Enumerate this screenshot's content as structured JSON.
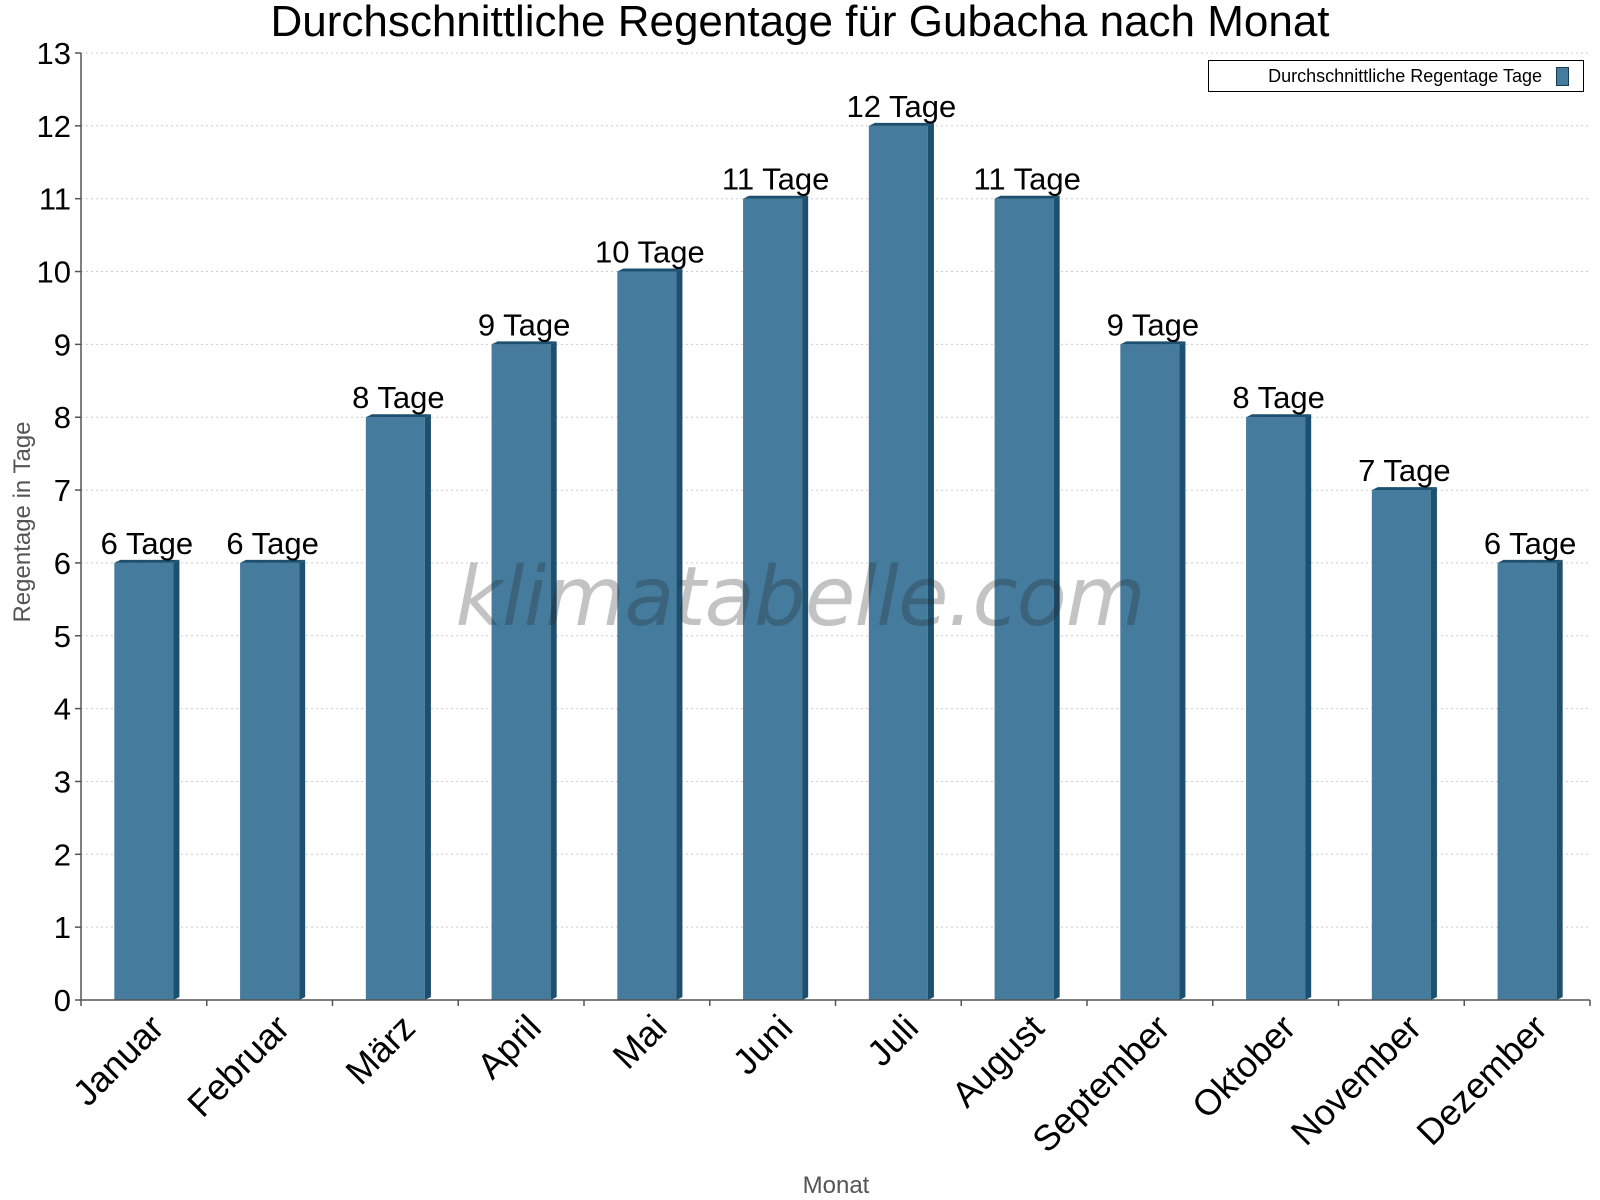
{
  "chart_data": {
    "type": "bar",
    "title": "Durchschnittliche Regentage für Gubacha nach Monat",
    "xlabel": "Monat",
    "ylabel": "Regentage in Tage",
    "ylim": [
      0,
      13
    ],
    "yticks": [
      0,
      1,
      2,
      3,
      4,
      5,
      6,
      7,
      8,
      9,
      10,
      11,
      12,
      13
    ],
    "grid": true,
    "legend_position": "top-right",
    "categories": [
      "Januar",
      "Februar",
      "März",
      "April",
      "Mai",
      "Juni",
      "Juli",
      "August",
      "September",
      "Oktober",
      "November",
      "Dezember"
    ],
    "series": [
      {
        "name": "Durchschnittliche Regentage Tage",
        "values": [
          6,
          6,
          8,
          9,
          10,
          11,
          12,
          11,
          9,
          8,
          7,
          6
        ],
        "labels": [
          "6 Tage",
          "6 Tage",
          "8 Tage",
          "9 Tage",
          "10 Tage",
          "11 Tage",
          "12 Tage",
          "11 Tage",
          "9 Tage",
          "8 Tage",
          "7 Tage",
          "6 Tage"
        ],
        "color": "#457b9d",
        "side_color": "#1d4f6e",
        "top_color": "#1d4f6e"
      }
    ]
  },
  "watermark": "klimatabelle.com",
  "colors": {
    "axis": "#555555",
    "grid": "#cccccc",
    "text": "#000000",
    "axis_title": "#555555"
  }
}
